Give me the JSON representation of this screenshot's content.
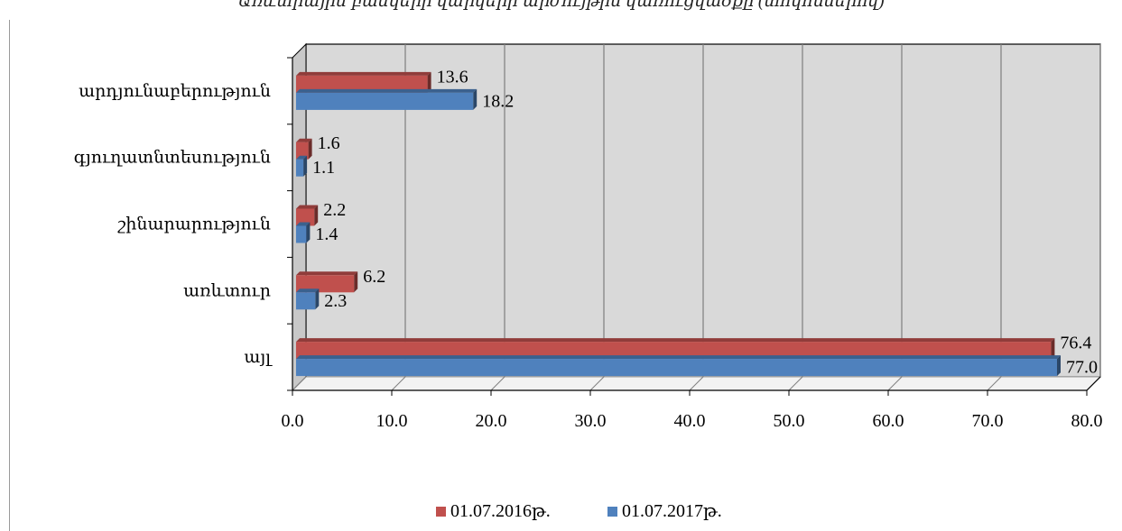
{
  "chart_data": {
    "type": "bar",
    "orientation": "horizontal",
    "three_d": true,
    "title": "Առևտրային բանկերի վարկերի արժույթին կառուցվածքը (տոկոսներով)",
    "categories": [
      "արդյունաբերություն",
      "գյուղատնտեսություն",
      "շինարարություն",
      "առևտուր",
      "այլ"
    ],
    "series": [
      {
        "name": "01.07.2016թ.",
        "color": "#c0504d",
        "values": [
          13.6,
          1.6,
          2.2,
          6.2,
          76.4
        ],
        "labels": [
          "13.6",
          "1.6",
          "2.2",
          "6.2",
          "76.4"
        ]
      },
      {
        "name": "01.07.2017թ.",
        "color": "#4f81bd",
        "values": [
          18.2,
          1.1,
          1.4,
          2.3,
          77.0
        ],
        "labels": [
          "18.2",
          "1.1",
          "1.4",
          "2.3",
          "77.0"
        ]
      }
    ],
    "x_ticks": [
      "0.0",
      "10.0",
      "20.0",
      "30.0",
      "40.0",
      "50.0",
      "60.0",
      "70.0",
      "80.0"
    ],
    "xlim": [
      0,
      80
    ],
    "grid": true,
    "legend_position": "bottom"
  }
}
